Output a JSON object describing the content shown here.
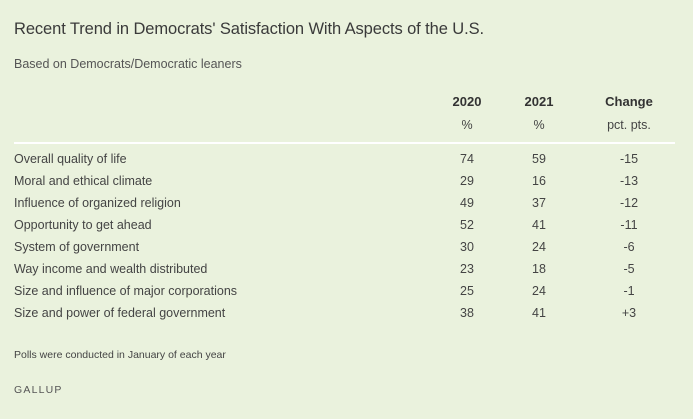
{
  "title": "Recent Trend in Democrats' Satisfaction With Aspects of the U.S.",
  "subtitle": "Based on Democrats/Democratic leaners",
  "columns": {
    "c1": "2020",
    "c2": "2021",
    "c3": "Change",
    "u1": "%",
    "u2": "%",
    "u3": "pct. pts."
  },
  "rows": [
    {
      "label": "Overall quality of life",
      "y2020": "74",
      "y2021": "59",
      "change": "-15"
    },
    {
      "label": "Moral and ethical climate",
      "y2020": "29",
      "y2021": "16",
      "change": "-13"
    },
    {
      "label": "Influence of organized religion",
      "y2020": "49",
      "y2021": "37",
      "change": "-12"
    },
    {
      "label": "Opportunity to get ahead",
      "y2020": "52",
      "y2021": "41",
      "change": "-11"
    },
    {
      "label": "System of government",
      "y2020": "30",
      "y2021": "24",
      "change": "-6"
    },
    {
      "label": "Way income and wealth distributed",
      "y2020": "23",
      "y2021": "18",
      "change": "-5"
    },
    {
      "label": "Size and influence of major corporations",
      "y2020": "25",
      "y2021": "24",
      "change": "-1"
    },
    {
      "label": "Size and power of federal government",
      "y2020": "38",
      "y2021": "41",
      "change": "+3"
    }
  ],
  "note": "Polls were conducted in January of each year",
  "brand": "GALLUP",
  "colors": {
    "background": "#eaf2dd",
    "divider": "#ffffff",
    "text": "#333333"
  }
}
